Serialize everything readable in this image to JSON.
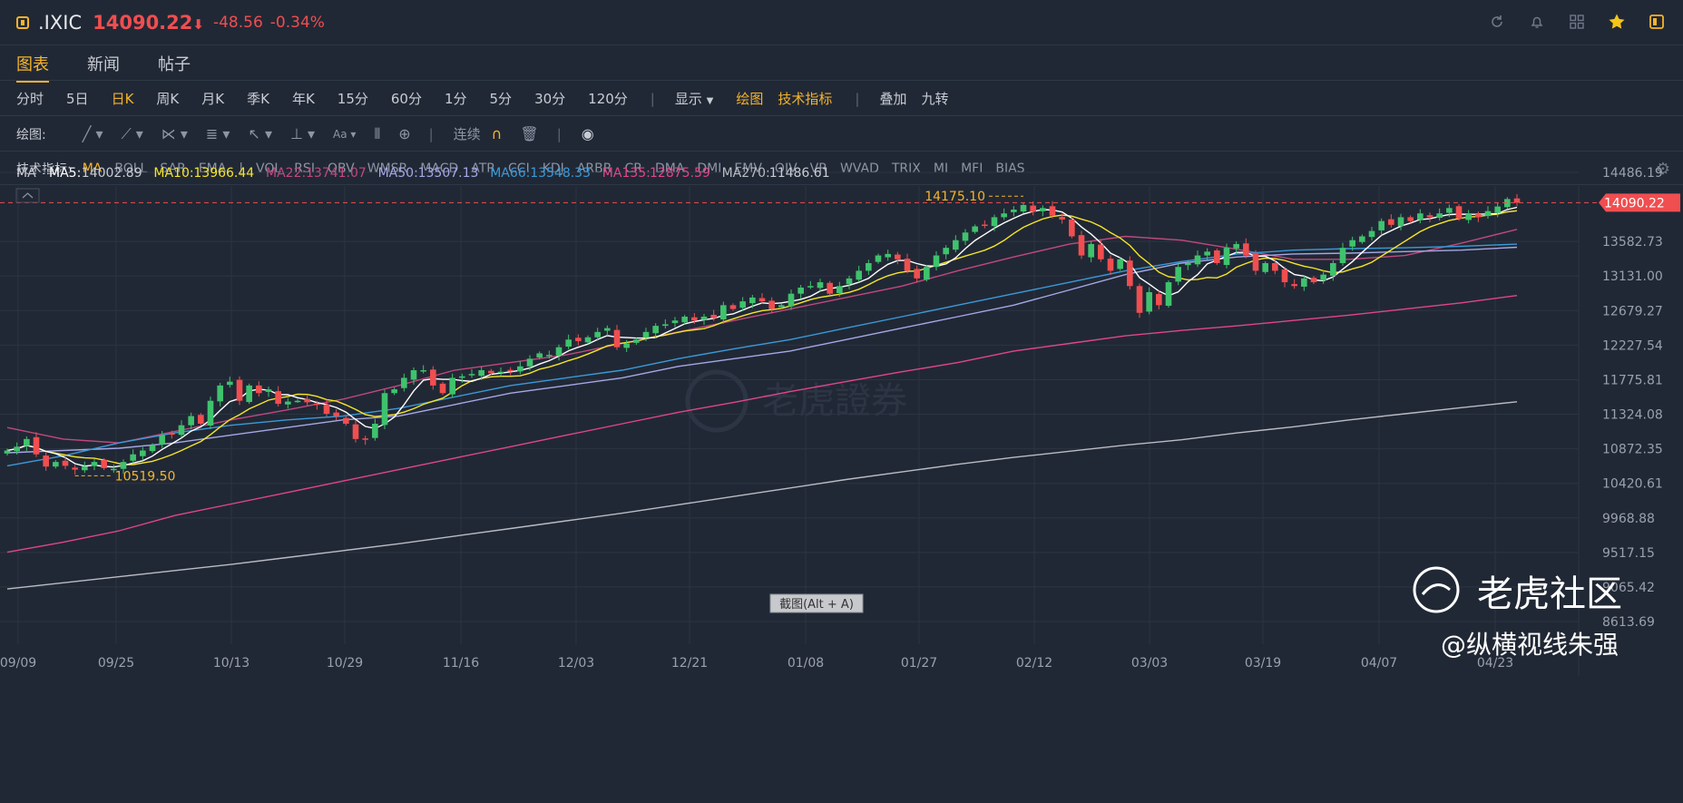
{
  "header": {
    "ticker": ".IXIC",
    "price": "14090.22",
    "arrow": "⬇",
    "change": "-48.56",
    "change_pct": "-0.34%"
  },
  "tabs": [
    {
      "label": "图表",
      "active": true
    },
    {
      "label": "新闻",
      "active": false
    },
    {
      "label": "帖子",
      "active": false
    }
  ],
  "periods": [
    "分时",
    "5日",
    "日K",
    "周K",
    "月K",
    "季K",
    "年K",
    "15分",
    "60分",
    "1分",
    "5分",
    "30分",
    "120分"
  ],
  "periods_active": "日K",
  "period_tools": {
    "display": "显示",
    "draw": "绘图",
    "indicator": "技术指标",
    "overlay": "叠加",
    "nine_turn": "九转"
  },
  "draw_toolbar": {
    "label": "绘图:",
    "continuous": "连续"
  },
  "indicator_bar": {
    "label": "技术指标:",
    "main": [
      "MA",
      "BOLL",
      "SAR",
      "EMA"
    ],
    "sub": [
      "VOL",
      "RSI",
      "OBV",
      "WMSR",
      "MACD",
      "ATR",
      "CCI",
      "KDJ",
      "ARBR",
      "CR",
      "DMA",
      "DMI",
      "EMV",
      "OIV",
      "VR",
      "WVAD",
      "TRIX",
      "MI",
      "MFI",
      "BIAS"
    ]
  },
  "ma_legend": {
    "label": "MA",
    "items": [
      {
        "name": "MA5:",
        "value": "14002.89",
        "color": "#ffffff"
      },
      {
        "name": "MA10:",
        "value": "13966.44",
        "color": "#f5e52a"
      },
      {
        "name": "MA22:",
        "value": "13741.07",
        "color": "#c0497e"
      },
      {
        "name": "MA50:",
        "value": "13507.13",
        "color": "#a4a8e6"
      },
      {
        "name": "MA66:",
        "value": "13548.33",
        "color": "#3a9ad9"
      },
      {
        "name": "MA135:",
        "value": "12875.59",
        "color": "#e0468a"
      },
      {
        "name": "MA270:",
        "value": "11486.61",
        "color": "#b9bcc4"
      }
    ]
  },
  "annotations": {
    "high_label": "14175.10",
    "low_label": "10519.50",
    "last_price_tag": "14090.22",
    "screenshot_hint": "截图(Alt + A)"
  },
  "watermark": {
    "center": "老虎證券",
    "brand": "老虎社区",
    "author": "@纵横视线朱强"
  },
  "colors": {
    "up": "#3fc26d",
    "down": "#f04e50",
    "accent": "#f5b42a",
    "background": "#212835"
  },
  "chart_data": {
    "type": "candlestick",
    "y_ticks": [
      "14486.19",
      "13582.73",
      "13131.00",
      "12679.27",
      "12227.54",
      "11775.81",
      "11324.08",
      "10872.35",
      "10420.61",
      "9968.88",
      "9517.15",
      "9065.42",
      "8613.69"
    ],
    "ylim": [
      8613.69,
      14486.19
    ],
    "x_ticks": [
      "09/09",
      "09/25",
      "10/13",
      "10/29",
      "11/16",
      "12/03",
      "12/21",
      "01/08",
      "01/27",
      "02/12",
      "03/03",
      "03/19",
      "04/07",
      "04/23"
    ],
    "close": [
      10850,
      10900,
      11000,
      10800,
      10640,
      10700,
      10650,
      10600,
      10640,
      10700,
      10620,
      10610,
      10700,
      10800,
      10850,
      10920,
      11050,
      11070,
      11180,
      11300,
      11200,
      11500,
      11700,
      11750,
      11500,
      11700,
      11600,
      11650,
      11460,
      11490,
      11500,
      11480,
      11450,
      11330,
      11300,
      11200,
      11000,
      10990,
      11200,
      11600,
      11650,
      11800,
      11900,
      11900,
      11700,
      11600,
      11800,
      11820,
      11850,
      11900,
      11860,
      11880,
      11900,
      11950,
      12050,
      12120,
      12100,
      12200,
      12300,
      12280,
      12330,
      12400,
      12450,
      12200,
      12250,
      12300,
      12400,
      12480,
      12500,
      12550,
      12600,
      12550,
      12600,
      12580,
      12750,
      12700,
      12800,
      12850,
      12800,
      12700,
      12750,
      12900,
      12980,
      13000,
      13050,
      12900,
      13000,
      13100,
      13200,
      13300,
      13400,
      13420,
      13350,
      13200,
      13100,
      13250,
      13400,
      13500,
      13600,
      13700,
      13780,
      13800,
      13900,
      13950,
      14000,
      14060,
      13970,
      14020,
      13920,
      13870,
      13650,
      13400,
      13550,
      13350,
      13200,
      13350,
      13000,
      12650,
      12920,
      12750,
      13050,
      13250,
      13300,
      13400,
      13450,
      13300,
      13500,
      13550,
      13400,
      13200,
      13300,
      13200,
      13050,
      13000,
      13100,
      13050,
      13150,
      13300,
      13500,
      13600,
      13650,
      13720,
      13850,
      13800,
      13900,
      13850,
      13950,
      13900,
      13950,
      14020,
      13880,
      13940,
      13900,
      13980,
      14040,
      14138,
      14090
    ],
    "ma_series": [
      {
        "name": "MA22",
        "values": [
          11150,
          11000,
          10950,
          11100,
          11250,
          11380,
          11520,
          11700,
          11900,
          12000,
          12100,
          12250,
          12400,
          12550,
          12700,
          12850,
          13000,
          13200,
          13380,
          13550,
          13650,
          13600,
          13480,
          13350,
          13350,
          13400,
          13560,
          13741
        ]
      },
      {
        "name": "MA50",
        "values": [
          10820,
          10850,
          10880,
          10950,
          11050,
          11150,
          11250,
          11300,
          11450,
          11600,
          11700,
          11800,
          11950,
          12050,
          12150,
          12300,
          12450,
          12600,
          12750,
          12950,
          13150,
          13300,
          13380,
          13420,
          13430,
          13450,
          13470,
          13507
        ]
      },
      {
        "name": "MA66",
        "values": [
          10650,
          10780,
          10950,
          11080,
          11180,
          11250,
          11300,
          11400,
          11550,
          11700,
          11800,
          11900,
          12050,
          12180,
          12300,
          12450,
          12600,
          12750,
          12900,
          13050,
          13200,
          13320,
          13420,
          13470,
          13490,
          13500,
          13520,
          13548
        ]
      },
      {
        "name": "MA135",
        "values": [
          9520,
          9650,
          9800,
          10000,
          10150,
          10300,
          10450,
          10600,
          10750,
          10900,
          11050,
          11200,
          11350,
          11480,
          11620,
          11750,
          11880,
          12000,
          12150,
          12250,
          12350,
          12420,
          12480,
          12550,
          12620,
          12700,
          12780,
          12876
        ]
      },
      {
        "name": "MA270",
        "values": [
          9040,
          9120,
          9200,
          9280,
          9360,
          9450,
          9540,
          9630,
          9730,
          9830,
          9930,
          10030,
          10140,
          10250,
          10360,
          10470,
          10570,
          10670,
          10760,
          10840,
          10920,
          10990,
          11080,
          11160,
          11250,
          11330,
          11410,
          11487
        ]
      }
    ],
    "high_marker": {
      "value": 14175.1,
      "bar_index": 105
    },
    "low_marker": {
      "value": 10519.5,
      "bar_index": 7
    }
  }
}
